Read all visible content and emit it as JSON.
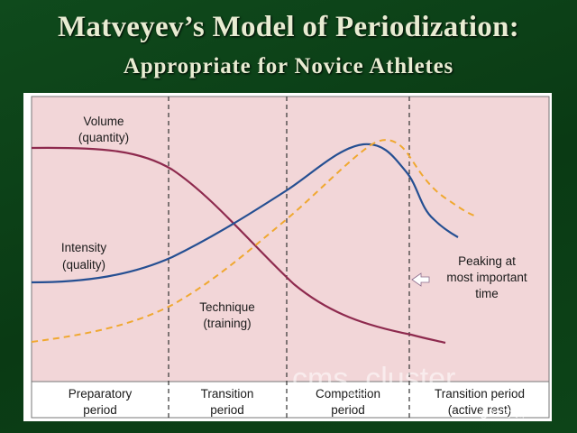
{
  "slide": {
    "title": "Matveyev’s Model of Periodization:",
    "subtitle": "Appropriate for Novice Athletes"
  },
  "diagram": {
    "curves": [
      {
        "name": "Volume (quantity)",
        "color": "#8e2a4e",
        "style": "solid"
      },
      {
        "name": "Intensity (quality)",
        "color": "#254f92",
        "style": "solid"
      },
      {
        "name": "Technique (training)",
        "color": "#f0a830",
        "style": "dashed"
      }
    ],
    "labels": {
      "volume_1": "Volume",
      "volume_2": "(quantity)",
      "intensity_1": "Intensity",
      "intensity_2": "(quality)",
      "technique_1": "Technique",
      "technique_2": "(training)",
      "peak_1": "Peaking at",
      "peak_2": "most important",
      "peak_3": "time"
    },
    "periods": [
      {
        "line1": "Preparatory",
        "line2": "period"
      },
      {
        "line1": "Transition",
        "line2": "period"
      },
      {
        "line1": "Competition",
        "line2": "period"
      },
      {
        "line1": "Transition period",
        "line2": "(active rest)"
      }
    ],
    "colors": {
      "plot_bg": "#f2d6d8",
      "divider": "#333333",
      "arrow": "#ffffff"
    }
  },
  "watermark": {
    "text": "cms_cluster",
    "credit": "@AXF文希"
  }
}
